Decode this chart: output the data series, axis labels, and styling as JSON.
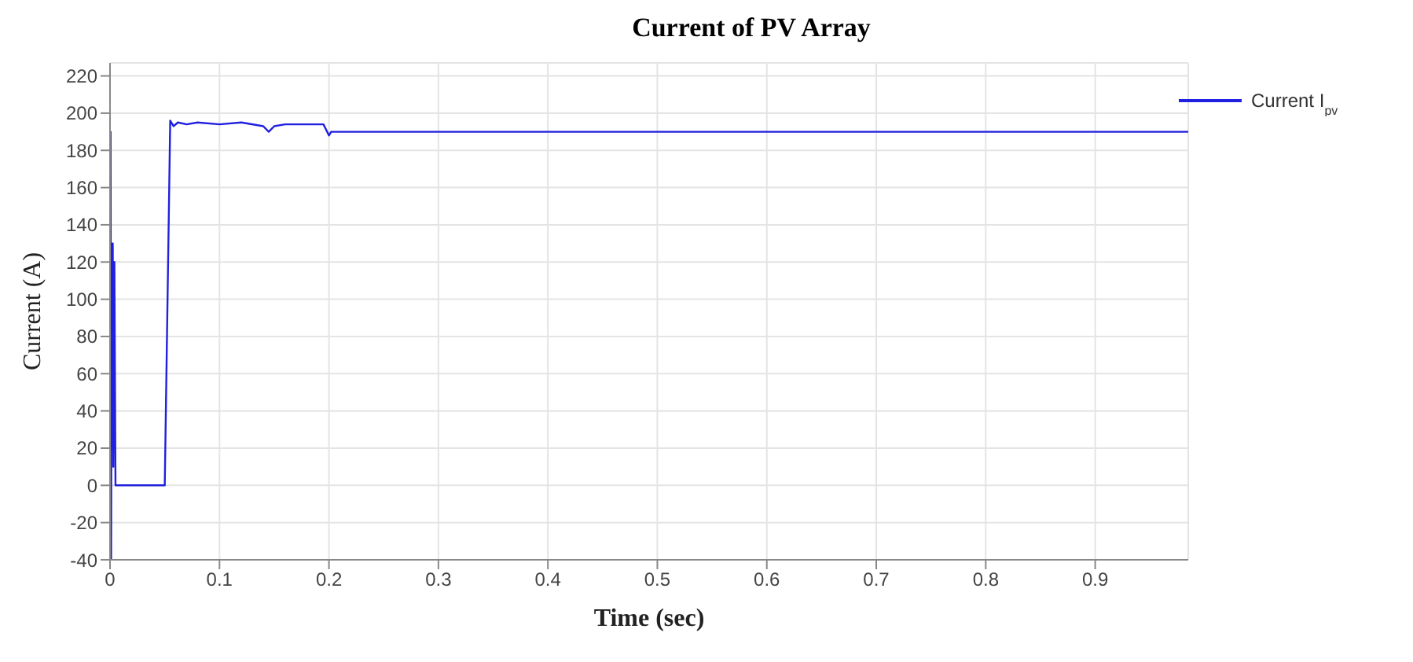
{
  "chart_data": {
    "type": "line",
    "title": "Current of PV Array",
    "xlabel": "Time (sec)",
    "ylabel": "Current (A)",
    "x": [
      0,
      0.0005,
      0.001,
      0.0015,
      0.002,
      0.0025,
      0.003,
      0.004,
      0.005,
      0.05,
      0.055,
      0.058,
      0.062,
      0.07,
      0.08,
      0.1,
      0.12,
      0.14,
      0.145,
      0.15,
      0.16,
      0.18,
      0.195,
      0.2,
      0.202,
      0.985
    ],
    "series": [
      {
        "name": "Current I$_{pv}$",
        "color": "#2020e0",
        "values": [
          0,
          190,
          -40,
          130,
          20,
          130,
          10,
          120,
          0,
          0,
          196,
          193,
          195,
          194,
          195,
          194,
          195,
          193,
          190,
          193,
          194,
          194,
          194,
          188,
          190,
          190
        ]
      }
    ],
    "xlim": [
      0,
      0.985
    ],
    "xticks": [
      0,
      0.1,
      0.2,
      0.3,
      0.4,
      0.5,
      0.6,
      0.7,
      0.8,
      0.9
    ],
    "ylim": [
      -40,
      227
    ],
    "yticks": [
      -40,
      -20,
      0,
      20,
      40,
      60,
      80,
      100,
      120,
      140,
      160,
      180,
      200,
      220
    ],
    "grid": true,
    "legend": "top right",
    "marker": "none",
    "line_style": "solid"
  }
}
